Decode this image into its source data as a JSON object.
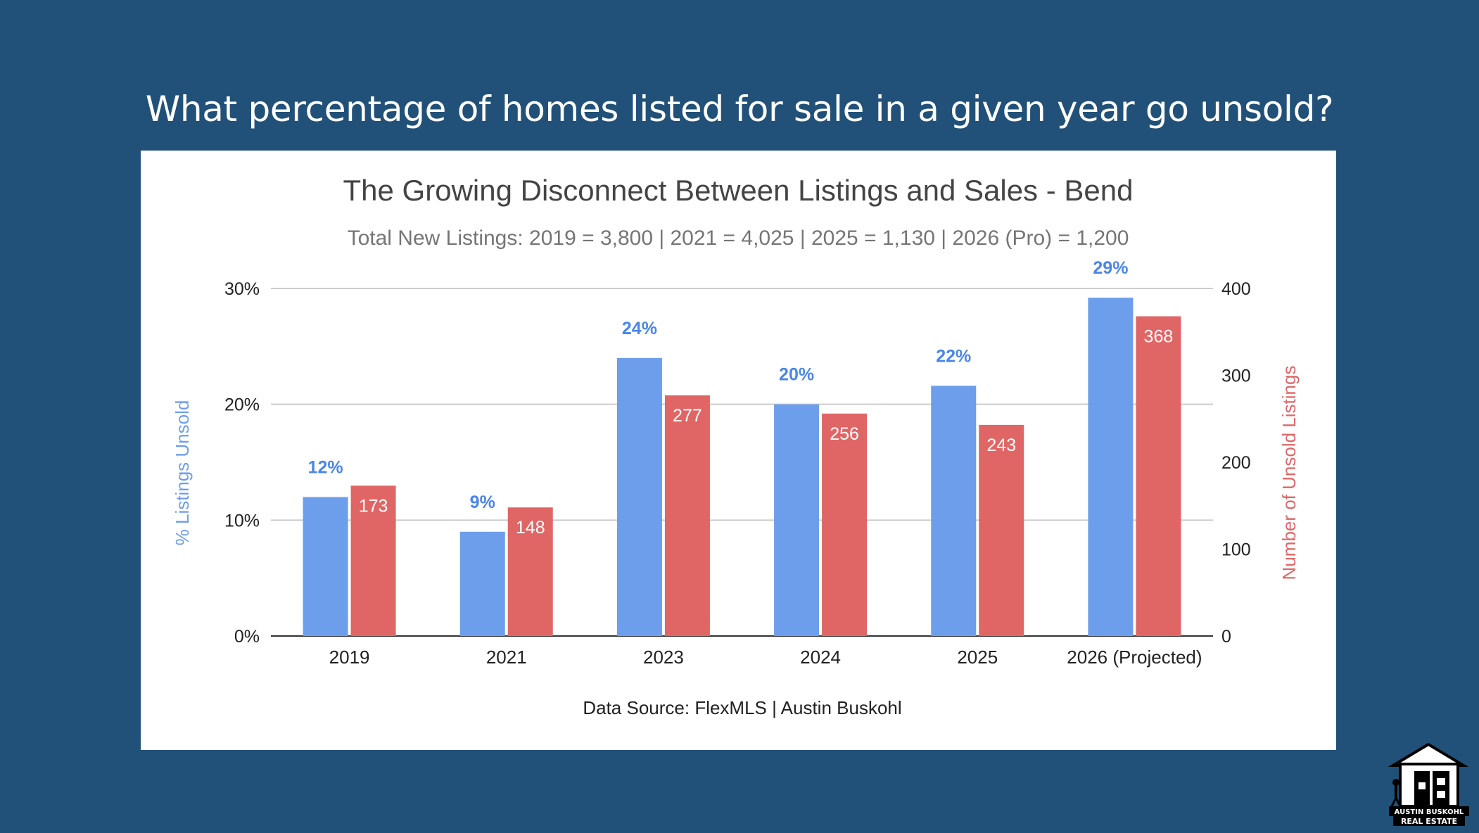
{
  "headline": "What percentage of homes listed for sale in a given year go unsold?",
  "colors": {
    "background": "#215178",
    "percent_series": "#6d9eeb",
    "count_series": "#e06666",
    "percent_label": "#4a86e8"
  },
  "logo": {
    "icon": "house-logo-icon",
    "name": "AUSTIN BUSKOHL",
    "tagline": "REAL ESTATE"
  },
  "chart_data": {
    "type": "bar",
    "title": "The Growing Disconnect Between Listings and Sales - Bend",
    "subtitle": "Total New Listings: 2019 = 3,800 | 2021 = 4,025 | 2025 = 1,130 | 2026 (Pro) = 1,200",
    "categories": [
      "2019",
      "2021",
      "2023",
      "2024",
      "2025",
      "2026 (Projected)"
    ],
    "series": [
      {
        "name": "% Listings Unsold",
        "axis": "left",
        "values": [
          12,
          9,
          24,
          20,
          21.6,
          29.2
        ],
        "labels": [
          "12%",
          "9%",
          "24%",
          "20%",
          "22%",
          "29%"
        ]
      },
      {
        "name": "Number of Unsold Listings",
        "axis": "right",
        "values": [
          173,
          148,
          277,
          256,
          243,
          368
        ],
        "labels": [
          "173",
          "148",
          "277",
          "256",
          "243",
          "368"
        ]
      }
    ],
    "y_left": {
      "label": "% Listings Unsold",
      "range": [
        0,
        30
      ],
      "ticks": [
        0,
        10,
        20,
        30
      ],
      "tick_labels": [
        "0%",
        "10%",
        "20%",
        "30%"
      ]
    },
    "y_right": {
      "label": "Number of Unsold Listings",
      "range": [
        0,
        400
      ],
      "ticks": [
        0,
        100,
        200,
        300,
        400
      ],
      "tick_labels": [
        "0",
        "100",
        "200",
        "300",
        "400"
      ]
    },
    "grid": true,
    "source": "Data Source: FlexMLS | Austin Buskohl"
  }
}
